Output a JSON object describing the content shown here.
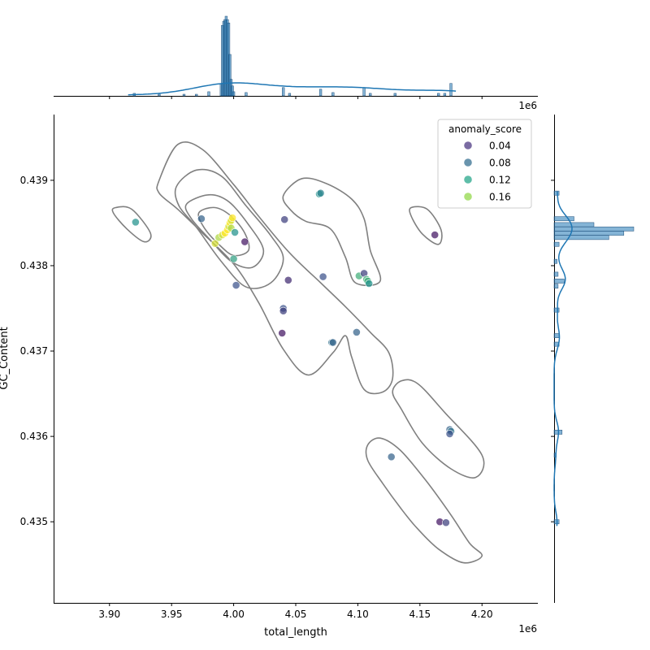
{
  "chart_data": {
    "type": "scatter",
    "title": "",
    "xlabel": "total_length",
    "ylabel": "GC_Content",
    "x_offset_label": "1e6",
    "top_offset_label": "1e6",
    "xlim": [
      3.855,
      4.245
    ],
    "ylim": [
      0.43405,
      0.43977
    ],
    "x_ticks": [
      3.9,
      3.95,
      4.0,
      4.05,
      4.1,
      4.15,
      4.2
    ],
    "x_tick_labels": [
      "3.90",
      "3.95",
      "4.00",
      "4.05",
      "4.10",
      "4.15",
      "4.20"
    ],
    "y_ticks": [
      0.435,
      0.436,
      0.437,
      0.438,
      0.439
    ],
    "y_tick_labels": [
      "0.435",
      "0.436",
      "0.437",
      "0.438",
      "0.439"
    ],
    "grid": false,
    "legend": {
      "title": "anomaly_score",
      "position": "top-right",
      "entries": [
        {
          "label": "0.04",
          "color": "#46327e"
        },
        {
          "label": "0.08",
          "color": "#2f6b8e"
        },
        {
          "label": "0.12",
          "color": "#20a386"
        },
        {
          "label": "0.16",
          "color": "#8fd744"
        }
      ]
    },
    "color_scale": {
      "min": 0.02,
      "max": 0.18
    },
    "points": [
      {
        "x": 3.921,
        "y": 0.43851,
        "score": 0.1
      },
      {
        "x": 3.974,
        "y": 0.43855,
        "score": 0.07
      },
      {
        "x": 3.985,
        "y": 0.43826,
        "score": 0.17
      },
      {
        "x": 3.988,
        "y": 0.43833,
        "score": 0.16
      },
      {
        "x": 3.991,
        "y": 0.43836,
        "score": 0.17
      },
      {
        "x": 3.993,
        "y": 0.43838,
        "score": 0.18
      },
      {
        "x": 3.995,
        "y": 0.43842,
        "score": 0.18
      },
      {
        "x": 3.996,
        "y": 0.43846,
        "score": 0.17
      },
      {
        "x": 3.997,
        "y": 0.4385,
        "score": 0.18
      },
      {
        "x": 3.998,
        "y": 0.43853,
        "score": 0.17
      },
      {
        "x": 3.998,
        "y": 0.43844,
        "score": 0.16
      },
      {
        "x": 3.999,
        "y": 0.43856,
        "score": 0.18
      },
      {
        "x": 4.0,
        "y": 0.43808,
        "score": 0.11
      },
      {
        "x": 4.001,
        "y": 0.43839,
        "score": 0.1
      },
      {
        "x": 4.002,
        "y": 0.43777,
        "score": 0.06
      },
      {
        "x": 4.009,
        "y": 0.43828,
        "score": 0.03
      },
      {
        "x": 4.039,
        "y": 0.43721,
        "score": 0.03
      },
      {
        "x": 4.04,
        "y": 0.4375,
        "score": 0.06
      },
      {
        "x": 4.04,
        "y": 0.43747,
        "score": 0.05
      },
      {
        "x": 4.041,
        "y": 0.43854,
        "score": 0.05
      },
      {
        "x": 4.044,
        "y": 0.43783,
        "score": 0.04
      },
      {
        "x": 4.069,
        "y": 0.43884,
        "score": 0.1
      },
      {
        "x": 4.07,
        "y": 0.43885,
        "score": 0.09
      },
      {
        "x": 4.072,
        "y": 0.43787,
        "score": 0.06
      },
      {
        "x": 4.079,
        "y": 0.4371,
        "score": 0.08
      },
      {
        "x": 4.08,
        "y": 0.4371,
        "score": 0.07
      },
      {
        "x": 4.099,
        "y": 0.43722,
        "score": 0.07
      },
      {
        "x": 4.101,
        "y": 0.43788,
        "score": 0.12
      },
      {
        "x": 4.105,
        "y": 0.43791,
        "score": 0.05
      },
      {
        "x": 4.107,
        "y": 0.43784,
        "score": 0.12
      },
      {
        "x": 4.108,
        "y": 0.43782,
        "score": 0.12
      },
      {
        "x": 4.109,
        "y": 0.43779,
        "score": 0.1
      },
      {
        "x": 4.127,
        "y": 0.43576,
        "score": 0.07
      },
      {
        "x": 4.162,
        "y": 0.43836,
        "score": 0.03
      },
      {
        "x": 4.166,
        "y": 0.435,
        "score": 0.03
      },
      {
        "x": 4.171,
        "y": 0.43499,
        "score": 0.05
      },
      {
        "x": 4.174,
        "y": 0.43608,
        "score": 0.07
      },
      {
        "x": 4.175,
        "y": 0.43606,
        "score": 0.08
      },
      {
        "x": 4.174,
        "y": 0.43603,
        "score": 0.06
      }
    ],
    "kde_contours": [
      {
        "points": [
          [
            3.94,
            0.439
          ],
          [
            3.955,
            0.43942
          ],
          [
            3.975,
            0.43936
          ],
          [
            4.0,
            0.43895
          ],
          [
            4.02,
            0.43858
          ],
          [
            4.045,
            0.43815
          ],
          [
            4.07,
            0.4378
          ],
          [
            4.09,
            0.43752
          ],
          [
            4.11,
            0.43722
          ],
          [
            4.125,
            0.43698
          ],
          [
            4.128,
            0.43668
          ],
          [
            4.12,
            0.43652
          ],
          [
            4.105,
            0.43655
          ],
          [
            4.095,
            0.43693
          ],
          [
            4.09,
            0.43718
          ],
          [
            4.08,
            0.43698
          ],
          [
            4.06,
            0.43672
          ],
          [
            4.04,
            0.43702
          ],
          [
            4.02,
            0.43757
          ],
          [
            4.0,
            0.43802
          ],
          [
            3.975,
            0.43838
          ],
          [
            3.955,
            0.43866
          ],
          [
            3.94,
            0.43885
          ]
        ]
      },
      {
        "points": [
          [
            4.04,
            0.43882
          ],
          [
            4.055,
            0.43902
          ],
          [
            4.075,
            0.43896
          ],
          [
            4.095,
            0.43878
          ],
          [
            4.105,
            0.43855
          ],
          [
            4.11,
            0.43818
          ],
          [
            4.118,
            0.43782
          ],
          [
            4.098,
            0.4378
          ],
          [
            4.09,
            0.4381
          ],
          [
            4.078,
            0.43843
          ],
          [
            4.058,
            0.43852
          ],
          [
            4.046,
            0.43865
          ]
        ]
      },
      {
        "points": [
          [
            3.954,
            0.43893
          ],
          [
            3.97,
            0.43912
          ],
          [
            3.99,
            0.43905
          ],
          [
            4.01,
            0.4387
          ],
          [
            4.03,
            0.43835
          ],
          [
            4.04,
            0.43808
          ],
          [
            4.03,
            0.4378
          ],
          [
            4.01,
            0.43775
          ],
          [
            3.99,
            0.43805
          ],
          [
            3.97,
            0.43845
          ],
          [
            3.956,
            0.4387
          ]
        ]
      },
      {
        "points": [
          [
            3.962,
            0.43872
          ],
          [
            3.98,
            0.43883
          ],
          [
            3.996,
            0.43875
          ],
          [
            4.012,
            0.43848
          ],
          [
            4.024,
            0.43818
          ],
          [
            4.015,
            0.43798
          ],
          [
            3.998,
            0.43805
          ],
          [
            3.98,
            0.43832
          ],
          [
            3.966,
            0.43855
          ]
        ]
      },
      {
        "points": [
          [
            3.972,
            0.43862
          ],
          [
            3.985,
            0.43868
          ],
          [
            3.998,
            0.43858
          ],
          [
            4.009,
            0.43838
          ],
          [
            4.012,
            0.43818
          ],
          [
            4.0,
            0.43812
          ],
          [
            3.988,
            0.43825
          ],
          [
            3.976,
            0.43845
          ]
        ]
      },
      {
        "points": [
          [
            3.905,
            0.43868
          ],
          [
            3.918,
            0.43866
          ],
          [
            3.933,
            0.43838
          ],
          [
            3.928,
            0.43828
          ],
          [
            3.914,
            0.43843
          ],
          [
            3.903,
            0.43862
          ]
        ]
      },
      {
        "points": [
          [
            4.143,
            0.43868
          ],
          [
            4.156,
            0.43866
          ],
          [
            4.167,
            0.43842
          ],
          [
            4.165,
            0.43825
          ],
          [
            4.152,
            0.43837
          ],
          [
            4.143,
            0.43858
          ]
        ]
      },
      {
        "points": [
          [
            4.135,
            0.43665
          ],
          [
            4.148,
            0.43662
          ],
          [
            4.17,
            0.43628
          ],
          [
            4.2,
            0.43578
          ],
          [
            4.195,
            0.43552
          ],
          [
            4.175,
            0.43562
          ],
          [
            4.152,
            0.43592
          ],
          [
            4.135,
            0.43632
          ],
          [
            4.128,
            0.43652
          ]
        ]
      },
      {
        "points": [
          [
            4.108,
            0.4359
          ],
          [
            4.118,
            0.43598
          ],
          [
            4.134,
            0.43584
          ],
          [
            4.155,
            0.43548
          ],
          [
            4.175,
            0.43508
          ],
          [
            4.19,
            0.43475
          ],
          [
            4.2,
            0.4346
          ],
          [
            4.185,
            0.43452
          ],
          [
            4.165,
            0.43468
          ],
          [
            4.148,
            0.43492
          ],
          [
            4.135,
            0.43515
          ],
          [
            4.12,
            0.43545
          ],
          [
            4.108,
            0.43572
          ]
        ]
      }
    ],
    "top_hist": {
      "bins": [
        3.92,
        3.94,
        3.96,
        3.97,
        3.98,
        3.99,
        3.991,
        3.992,
        3.993,
        3.994,
        3.995,
        3.996,
        3.997,
        3.998,
        3.999,
        4.0,
        4.01,
        4.04,
        4.045,
        4.07,
        4.08,
        4.105,
        4.11,
        4.13,
        4.165,
        4.17,
        4.175
      ],
      "counts": [
        0.3,
        0.2,
        0.2,
        0.2,
        0.5,
        1.5,
        8.5,
        9.0,
        9.2,
        9.6,
        9.2,
        8.8,
        5.0,
        2.0,
        1.2,
        0.5,
        0.4,
        1.0,
        0.3,
        0.8,
        0.4,
        1.0,
        0.3,
        0.3,
        0.3,
        0.3,
        1.5
      ]
    },
    "right_hist": {
      "bins": [
        0.43885,
        0.43855,
        0.43848,
        0.43843,
        0.43838,
        0.43833,
        0.43825,
        0.43805,
        0.4379,
        0.43782,
        0.43776,
        0.43748,
        0.43718,
        0.43708,
        0.43605,
        0.43578,
        0.435
      ],
      "counts": [
        0.5,
        2.0,
        4.0,
        8.0,
        7.0,
        5.5,
        0.5,
        0.3,
        0.4,
        1.0,
        0.4,
        0.5,
        0.5,
        0.5,
        0.8,
        0.2,
        0.5
      ]
    }
  }
}
